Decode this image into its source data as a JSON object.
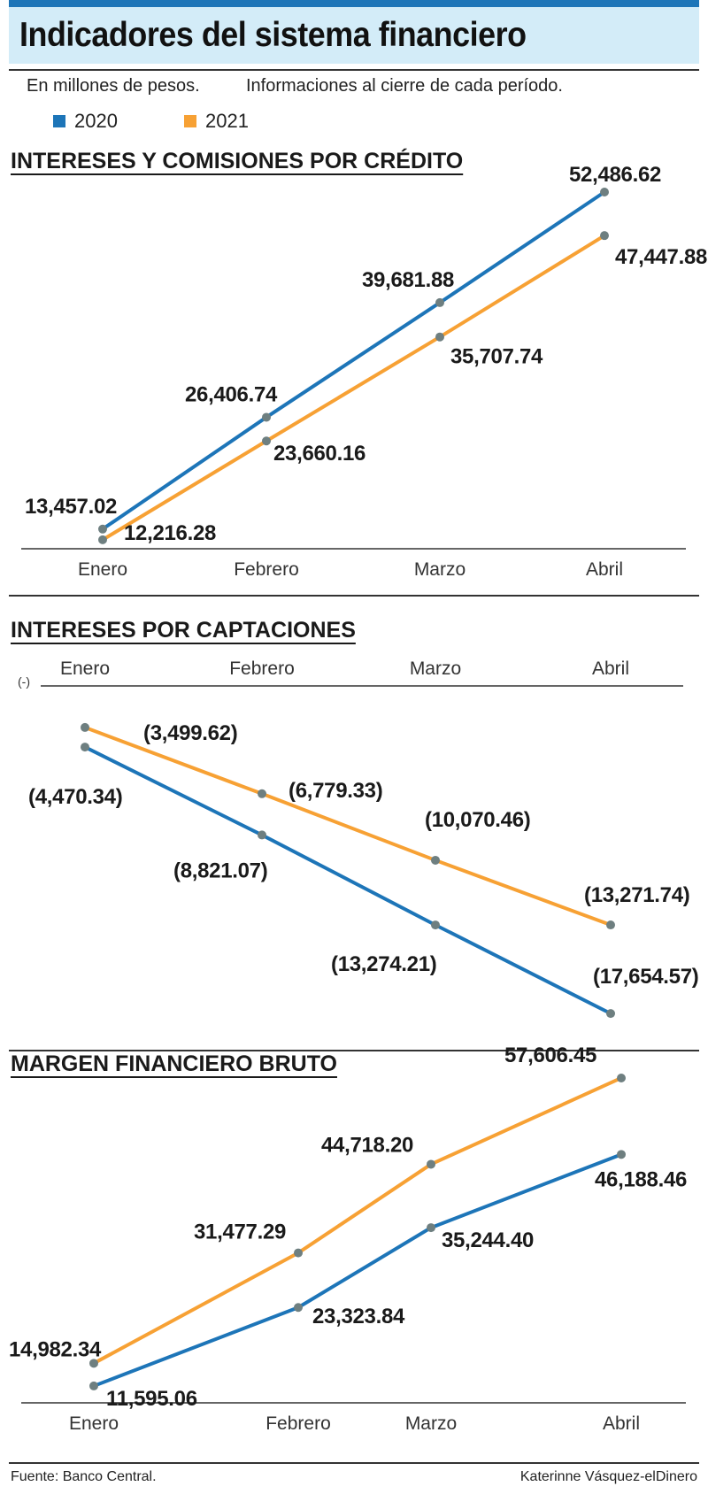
{
  "header": {
    "title": "Indicadores del sistema financiero",
    "note_units": "En millones de pesos.",
    "note_period": "Informaciones al cierre de cada período."
  },
  "legend": [
    {
      "name": "2020",
      "color": "#1d75b8"
    },
    {
      "name": "2021",
      "color": "#f7a134"
    }
  ],
  "chart_data": [
    {
      "type": "line",
      "title": "INTERESES Y COMISIONES POR CRÉDITO",
      "categories": [
        "Enero",
        "Febrero",
        "Marzo",
        "Abril"
      ],
      "ylim": [
        12000,
        53000
      ],
      "series": [
        {
          "name": "2020",
          "values": [
            13457.02,
            26406.74,
            39681.88,
            52486.62
          ],
          "labels": [
            "13,457.02",
            "26,406.74",
            "39,681.88",
            "52,486.62"
          ]
        },
        {
          "name": "2021",
          "values": [
            12216.28,
            23660.16,
            35707.74,
            47447.88
          ],
          "labels": [
            "12,216.28",
            "23,660.16",
            "35,707.74",
            "47,447.88"
          ]
        }
      ]
    },
    {
      "type": "line",
      "title": "INTERESES POR CAPTACIONES",
      "axis_note": "(-)",
      "categories": [
        "Enero",
        "Febrero",
        "Marzo",
        "Abril"
      ],
      "ylim": [
        0,
        -18000
      ],
      "series": [
        {
          "name": "2020",
          "values": [
            -4470.34,
            -8821.07,
            -13274.21,
            -17654.57
          ],
          "labels": [
            "(4,470.34)",
            "(8,821.07)",
            "(13,274.21)",
            "(17,654.57)"
          ]
        },
        {
          "name": "2021",
          "values": [
            -3499.62,
            -6779.33,
            -10070.46,
            -13271.74
          ],
          "labels": [
            "(3,499.62)",
            "(6,779.33)",
            "(10,070.46)",
            "(13,271.74)"
          ]
        }
      ]
    },
    {
      "type": "line",
      "title": "MARGEN FINANCIERO BRUTO",
      "categories": [
        "Enero",
        "Febrero",
        "Marzo",
        "Abril"
      ],
      "ylim": [
        10000,
        58000
      ],
      "series": [
        {
          "name": "2020",
          "values": [
            11595.06,
            23323.84,
            35244.4,
            46188.46
          ],
          "labels": [
            "11,595.06",
            "23,323.84",
            "35,244.40",
            "46,188.46"
          ]
        },
        {
          "name": "2021",
          "values": [
            14982.34,
            31477.29,
            44718.2,
            57606.45
          ],
          "labels": [
            "14,982.34",
            "31,477.29",
            "44,718.20",
            "57,606.45"
          ]
        }
      ]
    }
  ],
  "footer": {
    "source": "Fuente: Banco Central.",
    "credit": "Katerinne Vásquez-elDinero"
  },
  "colors": {
    "marker": "#6e7f80"
  }
}
